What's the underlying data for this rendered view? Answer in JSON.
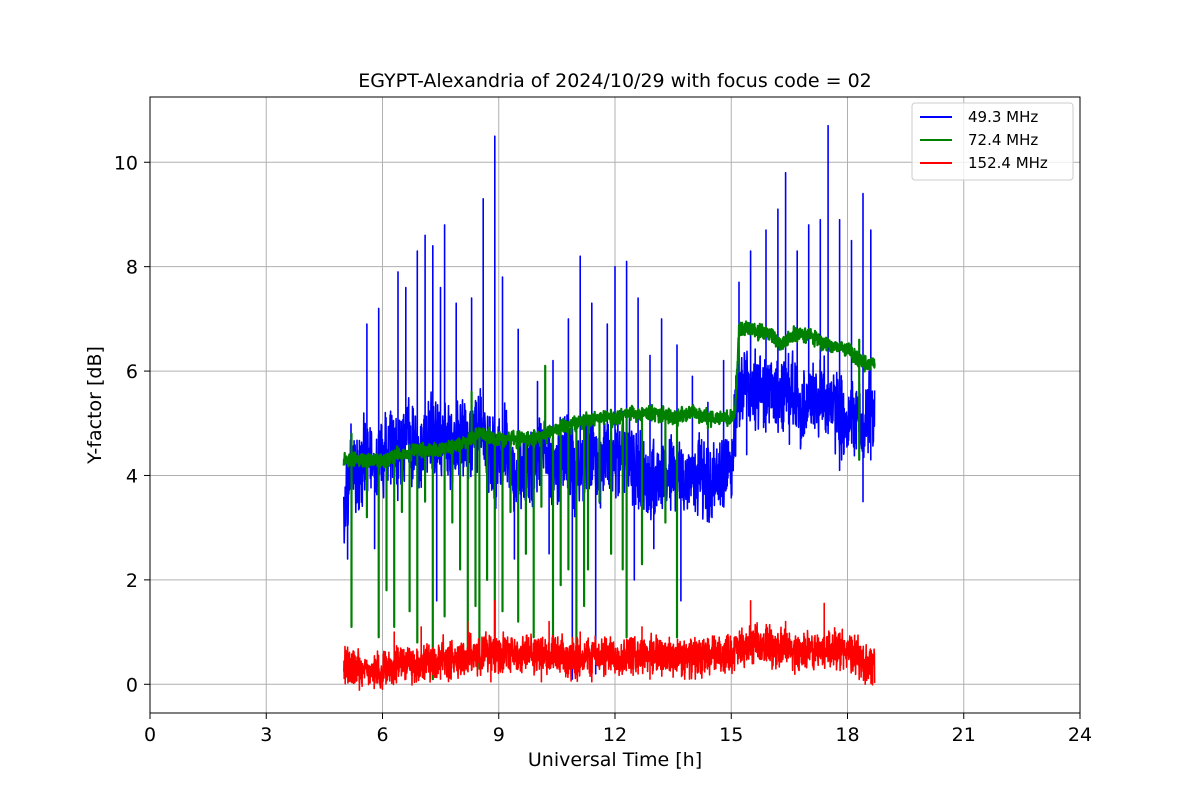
{
  "chart_data": {
    "type": "line",
    "title": "EGYPT-Alexandria of 2024/10/29 with focus code = 02",
    "xlabel": "Universal Time [h]",
    "ylabel": "Y-factor [dB]",
    "xlim": [
      0,
      24
    ],
    "ylim": [
      -0.55,
      11.25
    ],
    "xticks": [
      0,
      3,
      6,
      9,
      12,
      15,
      18,
      21,
      24
    ],
    "yticks": [
      0,
      2,
      4,
      6,
      8,
      10
    ],
    "grid": true,
    "legend_position": "top-right",
    "series": [
      {
        "name": "49.3 MHz",
        "color": "#0000ff",
        "x": [
          5.0,
          5.2,
          5.4,
          5.6,
          5.8,
          6.0,
          6.2,
          6.4,
          6.6,
          6.8,
          7.0,
          7.2,
          7.4,
          7.6,
          7.8,
          8.0,
          8.2,
          8.4,
          8.6,
          8.8,
          9.0,
          9.2,
          9.4,
          9.6,
          9.8,
          10.0,
          10.2,
          10.4,
          10.6,
          10.8,
          11.0,
          11.2,
          11.4,
          11.6,
          11.8,
          12.0,
          12.2,
          12.4,
          12.6,
          12.8,
          13.0,
          13.2,
          13.4,
          13.6,
          13.8,
          14.0,
          14.2,
          14.4,
          14.6,
          14.8,
          15.0,
          15.2,
          15.4,
          15.6,
          15.8,
          16.0,
          16.2,
          16.4,
          16.6,
          16.8,
          17.0,
          17.2,
          17.4,
          17.6,
          17.8,
          18.0,
          18.2,
          18.4,
          18.6,
          18.7
        ],
        "values": [
          3.2,
          4.3,
          4.0,
          4.5,
          3.9,
          4.4,
          4.6,
          4.3,
          4.8,
          4.5,
          4.4,
          4.9,
          4.6,
          4.8,
          4.4,
          4.7,
          4.5,
          5.0,
          4.8,
          4.4,
          4.2,
          4.6,
          4.0,
          4.1,
          4.2,
          4.3,
          4.6,
          4.1,
          4.3,
          4.5,
          4.0,
          4.3,
          4.4,
          4.1,
          4.4,
          4.3,
          4.5,
          4.2,
          4.1,
          3.9,
          4.0,
          3.9,
          4.1,
          4.0,
          3.9,
          4.0,
          4.1,
          3.8,
          3.9,
          4.0,
          4.2,
          5.6,
          5.8,
          5.5,
          5.7,
          5.6,
          5.4,
          5.8,
          5.6,
          5.2,
          5.5,
          5.4,
          5.6,
          5.3,
          5.2,
          5.0,
          5.2,
          4.8,
          5.4,
          4.9
        ],
        "spikes": [
          [
            5.6,
            6.9
          ],
          [
            5.9,
            7.2
          ],
          [
            6.4,
            7.9
          ],
          [
            6.6,
            7.6
          ],
          [
            6.9,
            8.3
          ],
          [
            7.1,
            8.6
          ],
          [
            7.3,
            8.4
          ],
          [
            7.5,
            7.6
          ],
          [
            7.6,
            8.8
          ],
          [
            7.9,
            7.3
          ],
          [
            8.3,
            7.4
          ],
          [
            8.6,
            9.3
          ],
          [
            8.9,
            10.5
          ],
          [
            9.1,
            7.8
          ],
          [
            9.5,
            6.8
          ],
          [
            10.0,
            5.8
          ],
          [
            10.4,
            6.2
          ],
          [
            10.8,
            7.0
          ],
          [
            11.1,
            8.2
          ],
          [
            11.4,
            7.3
          ],
          [
            11.8,
            6.9
          ],
          [
            12.0,
            8.0
          ],
          [
            12.3,
            8.1
          ],
          [
            12.6,
            7.4
          ],
          [
            12.9,
            6.3
          ],
          [
            13.2,
            7.0
          ],
          [
            13.6,
            6.5
          ],
          [
            14.0,
            5.9
          ],
          [
            14.4,
            5.4
          ],
          [
            14.8,
            6.2
          ],
          [
            15.2,
            7.7
          ],
          [
            15.5,
            8.3
          ],
          [
            15.9,
            8.7
          ],
          [
            16.2,
            9.1
          ],
          [
            16.4,
            9.8
          ],
          [
            16.7,
            8.3
          ],
          [
            17.0,
            8.8
          ],
          [
            17.3,
            8.9
          ],
          [
            17.5,
            10.7
          ],
          [
            17.8,
            8.9
          ],
          [
            18.1,
            8.5
          ],
          [
            18.4,
            9.4
          ],
          [
            18.6,
            8.7
          ]
        ],
        "dips": [
          [
            5.1,
            2.4
          ],
          [
            5.8,
            2.6
          ],
          [
            6.7,
            2.2
          ],
          [
            7.4,
            1.6
          ],
          [
            8.0,
            2.3
          ],
          [
            8.7,
            2.7
          ],
          [
            9.4,
            2.4
          ],
          [
            10.3,
            2.5
          ],
          [
            10.9,
            0.1
          ],
          [
            11.5,
            0.2
          ],
          [
            12.5,
            2.0
          ],
          [
            13.0,
            2.6
          ],
          [
            13.7,
            1.6
          ],
          [
            14.5,
            3.4
          ],
          [
            15.4,
            4.4
          ],
          [
            16.5,
            4.6
          ],
          [
            17.8,
            4.1
          ],
          [
            18.4,
            3.5
          ],
          [
            18.6,
            4.3
          ]
        ],
        "noise": 0.9,
        "smooth_noise": 0.05
      },
      {
        "name": "72.4 MHz",
        "color": "#008000",
        "x": [
          5.0,
          5.5,
          6.0,
          6.5,
          7.0,
          7.5,
          8.0,
          8.5,
          9.0,
          9.5,
          10.0,
          10.5,
          11.0,
          11.5,
          12.0,
          12.5,
          13.0,
          13.5,
          14.0,
          14.5,
          15.0,
          15.1,
          15.2,
          15.5,
          16.0,
          16.3,
          16.6,
          17.0,
          17.5,
          18.0,
          18.5,
          18.7
        ],
        "values": [
          4.3,
          4.3,
          4.3,
          4.4,
          4.5,
          4.5,
          4.6,
          4.8,
          4.7,
          4.7,
          4.7,
          4.9,
          5.0,
          5.1,
          5.1,
          5.2,
          5.2,
          5.1,
          5.2,
          5.1,
          5.1,
          5.2,
          6.8,
          6.8,
          6.7,
          6.5,
          6.7,
          6.7,
          6.5,
          6.4,
          6.1,
          6.2
        ],
        "spikes": [
          [
            5.2,
            4.8
          ],
          [
            8.3,
            5.6
          ],
          [
            10.2,
            6.1
          ],
          [
            18.3,
            6.6
          ]
        ],
        "dips": [
          [
            5.2,
            1.1
          ],
          [
            5.6,
            3.2
          ],
          [
            5.9,
            0.9
          ],
          [
            6.1,
            1.8
          ],
          [
            6.3,
            1.1
          ],
          [
            6.5,
            3.3
          ],
          [
            6.7,
            1.4
          ],
          [
            6.9,
            0.8
          ],
          [
            7.1,
            3.5
          ],
          [
            7.3,
            0.1
          ],
          [
            7.6,
            1.3
          ],
          [
            7.8,
            3.1
          ],
          [
            8.0,
            2.2
          ],
          [
            8.2,
            0.4
          ],
          [
            8.4,
            1.5
          ],
          [
            8.5,
            0.3
          ],
          [
            8.7,
            2.0
          ],
          [
            8.9,
            0.6
          ],
          [
            9.1,
            1.4
          ],
          [
            9.3,
            3.3
          ],
          [
            9.5,
            1.2
          ],
          [
            9.7,
            2.5
          ],
          [
            9.9,
            0.9
          ],
          [
            10.1,
            3.4
          ],
          [
            10.4,
            0.7
          ],
          [
            10.6,
            1.9
          ],
          [
            10.8,
            2.2
          ],
          [
            11.0,
            0.3
          ],
          [
            11.2,
            1.5
          ],
          [
            11.3,
            2.2
          ],
          [
            11.6,
            3.5
          ],
          [
            11.9,
            2.5
          ],
          [
            12.2,
            2.2
          ],
          [
            12.3,
            0.9
          ],
          [
            12.7,
            2.3
          ],
          [
            13.3,
            3.1
          ],
          [
            13.6,
            0.9
          ],
          [
            14.4,
            4.9
          ],
          [
            18.3,
            4.3
          ]
        ],
        "noise": 0.15,
        "smooth_noise": 0.05
      },
      {
        "name": "152.4 MHz",
        "color": "#ff0000",
        "x": [
          5.0,
          5.5,
          6.0,
          6.5,
          7.0,
          7.5,
          8.0,
          8.5,
          9.0,
          9.5,
          10.0,
          10.5,
          11.0,
          11.5,
          12.0,
          12.5,
          13.0,
          13.5,
          14.0,
          14.5,
          15.0,
          15.5,
          16.0,
          16.5,
          17.0,
          17.5,
          18.0,
          18.5,
          18.7
        ],
        "values": [
          0.3,
          0.3,
          0.3,
          0.4,
          0.4,
          0.5,
          0.5,
          0.6,
          0.6,
          0.6,
          0.6,
          0.5,
          0.5,
          0.55,
          0.55,
          0.55,
          0.6,
          0.5,
          0.5,
          0.55,
          0.6,
          0.75,
          0.75,
          0.65,
          0.6,
          0.7,
          0.65,
          0.4,
          0.4
        ],
        "spikes": [
          [
            6.3,
            1.0
          ],
          [
            7.0,
            1.1
          ],
          [
            8.2,
            1.2
          ],
          [
            8.9,
            1.6
          ],
          [
            10.3,
            1.2
          ],
          [
            11.1,
            1.0
          ],
          [
            12.7,
            1.1
          ],
          [
            13.4,
            0.9
          ],
          [
            15.5,
            1.6
          ],
          [
            16.4,
            1.2
          ],
          [
            17.4,
            1.55
          ]
        ],
        "dips": [
          [
            5.4,
            0.05
          ],
          [
            6.6,
            0.1
          ],
          [
            7.5,
            0.1
          ],
          [
            8.8,
            0.05
          ],
          [
            10.1,
            0.05
          ],
          [
            11.4,
            0.05
          ],
          [
            12.9,
            0.1
          ],
          [
            13.8,
            0.1
          ],
          [
            18.5,
            0.15
          ]
        ],
        "noise": 0.45,
        "smooth_noise": 0.05
      }
    ]
  }
}
